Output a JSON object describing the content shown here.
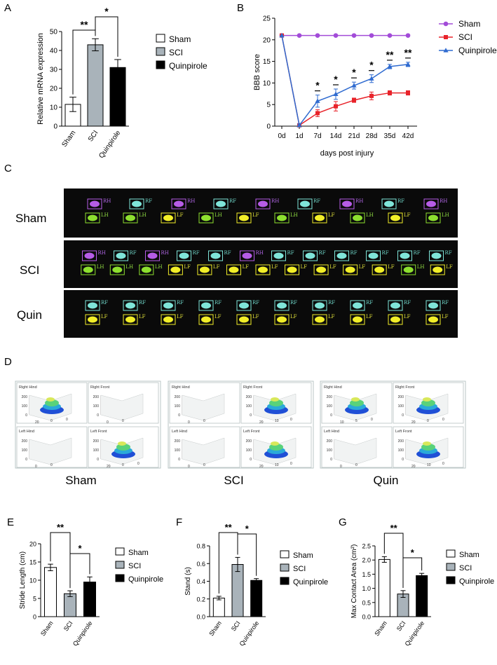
{
  "colors": {
    "sham": "#ffffff",
    "sci": "#a9b3ba",
    "quin": "#000000",
    "line_sham": "#a24bd8",
    "line_sci": "#e8232a",
    "line_quin": "#2f6bd0",
    "fp_rh": "#b65ce6",
    "fp_rf": "#7fe5d9",
    "fp_lf": "#f2ef28",
    "fp_lh": "#8de02f",
    "cv_lbl": "#6fd7c9",
    "cv_lbl_y": "#e3e33a",
    "cv_lbl_g": "#93e043",
    "cv_lbl_p": "#b166e6"
  },
  "panels": {
    "a": "A",
    "b": "B",
    "c": "C",
    "d": "D",
    "e": "E",
    "f": "F",
    "g": "G"
  },
  "legend": {
    "sham": "Sham",
    "sci": "SCI",
    "quin": "Quinpirole"
  },
  "group_short": {
    "sham": "Sham",
    "sci": "SCI",
    "quin": "Quin"
  },
  "stars": {
    "two": "**",
    "one": "*"
  },
  "chart_data": [
    {
      "id": "A",
      "type": "bar",
      "ylabel": "Relative mRNA expression",
      "categories": [
        "Sham",
        "SCI",
        "Quinpirole"
      ],
      "values": [
        11.5,
        43,
        31
      ],
      "errors": [
        3.8,
        3.2,
        4.2
      ],
      "ylim": [
        0,
        50
      ],
      "yticks": [
        0,
        10,
        20,
        30,
        40,
        50
      ],
      "significance": [
        {
          "pair": [
            0,
            1
          ],
          "label": "**"
        },
        {
          "pair": [
            1,
            2
          ],
          "label": "*"
        }
      ]
    },
    {
      "id": "B",
      "type": "line",
      "xlabel": "days post injury",
      "ylabel": "BBB score",
      "x": [
        "0d",
        "1d",
        "7d",
        "14d",
        "21d",
        "28d",
        "35d",
        "42d"
      ],
      "ylim": [
        0,
        25
      ],
      "yticks": [
        0,
        5,
        10,
        15,
        20,
        25
      ],
      "series": [
        {
          "name": "Sham",
          "values": [
            21,
            21,
            21,
            21,
            21,
            21,
            21,
            21
          ],
          "errors": [
            0,
            0,
            0,
            0,
            0,
            0,
            0,
            0
          ]
        },
        {
          "name": "SCI",
          "values": [
            21,
            0.2,
            3,
            4.6,
            6,
            7,
            7.7,
            7.7
          ],
          "errors": [
            0,
            0.3,
            0.8,
            1.1,
            0.5,
            0.9,
            0.5,
            0.5
          ]
        },
        {
          "name": "Quinpirole",
          "values": [
            21,
            0.2,
            5.8,
            7.4,
            9.4,
            11,
            13.8,
            14.3
          ],
          "errors": [
            0,
            0.3,
            1.4,
            1.2,
            0.8,
            0.9,
            0.5,
            0.5
          ]
        }
      ],
      "significance": [
        {
          "x": 2,
          "label": "*"
        },
        {
          "x": 3,
          "label": "*"
        },
        {
          "x": 4,
          "label": "*"
        },
        {
          "x": 5,
          "label": "*"
        },
        {
          "x": 6,
          "label": "**"
        },
        {
          "x": 7,
          "label": "**"
        }
      ]
    },
    {
      "id": "E",
      "type": "bar",
      "ylabel": "Stride Length (cm)",
      "categories": [
        "Sham",
        "SCI",
        "Quinpirole"
      ],
      "values": [
        13.5,
        6.3,
        9.5
      ],
      "errors": [
        0.9,
        0.8,
        1.4
      ],
      "ylim": [
        0,
        20
      ],
      "yticks": [
        0,
        5,
        10,
        15,
        20
      ],
      "significance": [
        {
          "pair": [
            0,
            1
          ],
          "label": "**"
        },
        {
          "pair": [
            1,
            2
          ],
          "label": "*"
        }
      ]
    },
    {
      "id": "F",
      "type": "bar",
      "ylabel": "Stand (s)",
      "categories": [
        "Sham",
        "SCI",
        "Quinpirole"
      ],
      "values": [
        0.21,
        0.59,
        0.41
      ],
      "errors": [
        0.02,
        0.08,
        0.02
      ],
      "ylim": [
        0,
        0.8
      ],
      "yticks": [
        "0.0",
        "0.2",
        "0.4",
        "0.6",
        "0.8"
      ],
      "significance": [
        {
          "pair": [
            0,
            1
          ],
          "label": "**"
        },
        {
          "pair": [
            1,
            2
          ],
          "label": "*"
        }
      ]
    },
    {
      "id": "G",
      "type": "bar",
      "ylabel": "Max Contact Area (cm²)",
      "categories": [
        "Sham",
        "SCI",
        "Quinpirole"
      ],
      "values": [
        2.02,
        0.8,
        1.45
      ],
      "errors": [
        0.1,
        0.12,
        0.08
      ],
      "ylim": [
        0,
        2.5
      ],
      "yticks": [
        "0.0",
        "0.5",
        "1.0",
        "1.5",
        "2.0",
        "2.5"
      ],
      "significance": [
        {
          "pair": [
            0,
            1
          ],
          "label": "**"
        },
        {
          "pair": [
            1,
            2
          ],
          "label": "*"
        }
      ]
    }
  ],
  "catwalk": {
    "rows": [
      {
        "name": "Sham",
        "labels": [
          "RH",
          "RF",
          "RH",
          "RF",
          "RH",
          "RF",
          "RH",
          "RF",
          "RH",
          "LH",
          "LH",
          "LF",
          "LH",
          "LF",
          "LH",
          "LF",
          "LH",
          "LF",
          "LH"
        ]
      },
      {
        "name": "SCI",
        "labels": [
          "RH",
          "RF",
          "RH",
          "RF",
          "RF",
          "RH",
          "RF",
          "RF",
          "RF",
          "RF",
          "RF",
          "RF",
          "LH",
          "LH",
          "LH",
          "LF",
          "LF",
          "LF",
          "LF",
          "LF",
          "LF",
          "LF",
          "LF",
          "LH",
          "LF"
        ]
      },
      {
        "name": "Quin",
        "labels": [
          "RF",
          "RF",
          "RF",
          "RF",
          "RF",
          "RF",
          "RF",
          "RF",
          "RF",
          "RF",
          "LF",
          "LF",
          "LF",
          "LF",
          "LF",
          "LF",
          "LF",
          "LF",
          "LF",
          "LF"
        ]
      }
    ]
  },
  "plot3d": {
    "panels": [
      "Right Hind",
      "Right Front",
      "Left Hind",
      "Left Front"
    ],
    "z_ticks": [
      "0",
      "100",
      "200"
    ],
    "groups": [
      {
        "name": "Sham",
        "active": [
          true,
          false,
          false,
          true
        ],
        "axis": [
          [
            "20",
            "0",
            "0"
          ],
          [
            "0",
            "0"
          ],
          [
            "0",
            "0"
          ],
          [
            "20",
            "0",
            "0"
          ]
        ]
      },
      {
        "name": "SCI",
        "active": [
          false,
          true,
          false,
          true
        ],
        "axis": [
          [
            "0",
            "0"
          ],
          [
            "20",
            "10",
            "0"
          ],
          [
            "0",
            "0"
          ],
          [
            "20",
            "10",
            "0"
          ]
        ]
      },
      {
        "name": "Quin",
        "active": [
          true,
          true,
          false,
          true
        ],
        "axis": [
          [
            "10",
            "5",
            "0"
          ],
          [
            "20",
            "0",
            "0"
          ],
          [
            "0",
            "0"
          ],
          [
            "20",
            "10",
            "0"
          ]
        ]
      }
    ]
  }
}
